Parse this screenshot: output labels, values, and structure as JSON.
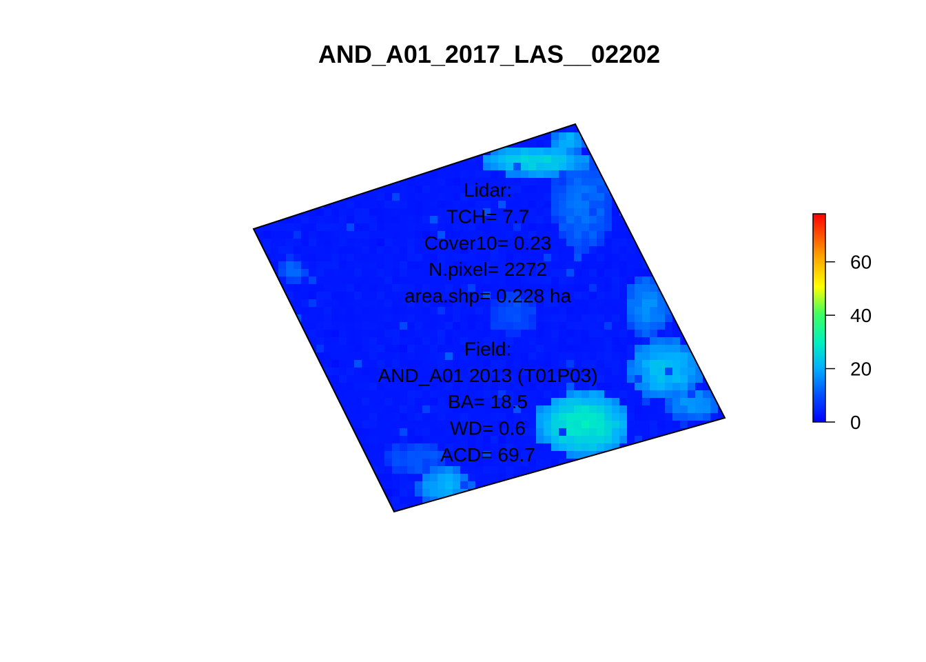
{
  "chart_data": {
    "type": "heatmap",
    "title": "AND_A01_2017_LAS__02202",
    "description_type": "raster",
    "legend_placement": "right",
    "colorbar": {
      "range": [
        0,
        78
      ],
      "ticks": [
        0,
        20,
        40,
        60
      ],
      "tick_labels": [
        "0",
        "20",
        "40",
        "60"
      ],
      "palette": [
        "#0000ff",
        "#0080ff",
        "#00e0e0",
        "#40ff80",
        "#ffff00",
        "#ff8000",
        "#ff0000"
      ]
    },
    "annotations": {
      "lidar": [
        "Lidar:",
        "TCH= 7.7",
        "Cover10= 0.23",
        "N.pixel= 2272",
        "area.shp= 0.228 ha"
      ],
      "field": [
        "Field:",
        "AND_A01 2013 (T01P03)",
        "BA= 18.5",
        "WD= 0.6",
        "ACD= 69.7"
      ]
    },
    "plot_stats": {
      "TCH": 7.7,
      "Cover10": 0.23,
      "N_pixel": 2272,
      "area_shp_ha": 0.228,
      "BA": 18.5,
      "WD": 0.6,
      "ACD": 69.7
    },
    "grid": false
  }
}
